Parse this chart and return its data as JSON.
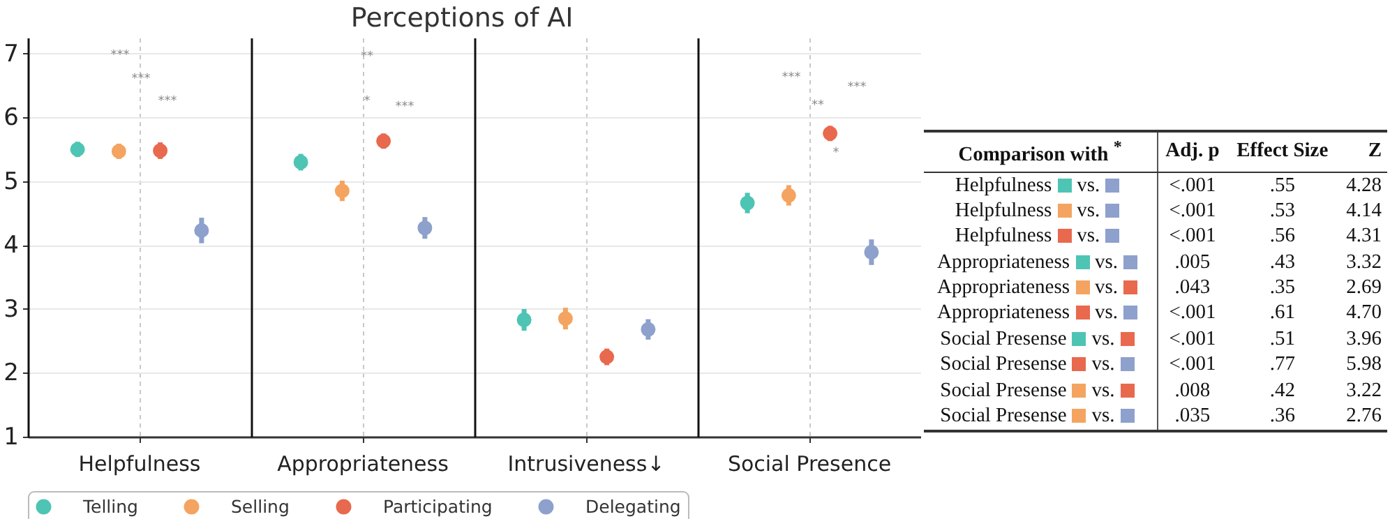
{
  "chart_data": [
    {
      "type": "scatter",
      "title": "Perceptions of AI",
      "categories": [
        "Helpfulness",
        "Appropriateness",
        "Intrusiveness↓",
        "Social Presence"
      ],
      "series": [
        {
          "name": "Telling",
          "color": "#4ec4b4",
          "values": [
            5.5,
            5.3,
            2.83,
            4.66
          ],
          "errors": [
            0.12,
            0.13,
            0.17,
            0.16
          ]
        },
        {
          "name": "Selling",
          "color": "#f4a460",
          "values": [
            5.47,
            4.85,
            2.85,
            4.78
          ],
          "errors": [
            0.12,
            0.16,
            0.17,
            0.16
          ]
        },
        {
          "name": "Participating",
          "color": "#e8694e",
          "values": [
            5.48,
            5.63,
            2.25,
            5.75
          ],
          "errors": [
            0.13,
            0.12,
            0.13,
            0.12
          ]
        },
        {
          "name": "Delegating",
          "color": "#8ea0cc",
          "values": [
            4.23,
            4.27,
            2.68,
            3.89
          ],
          "errors": [
            0.2,
            0.17,
            0.16,
            0.2
          ]
        }
      ],
      "ylim": [
        1,
        7.25
      ],
      "yticks": [
        1,
        2,
        3,
        4,
        5,
        6,
        7
      ],
      "grid": true,
      "legend": "bottom",
      "marker": "circle",
      "annotations": [
        "***",
        "***",
        "***",
        "**",
        "*",
        "***",
        "***",
        "***",
        "**",
        "*"
      ]
    },
    {
      "type": "other",
      "categories": [
        "Comparison with $^{*}$",
        "Adj. p",
        "Effect Size",
        "Z"
      ],
      "y_categories": [
        "Helpfulness",
        "Helpfulness",
        "Helpfulness",
        "Appropriateness",
        "Appropriateness",
        "Appropriateness",
        "Social Presense",
        "Social Presense",
        "Social Presense",
        "Social Presense"
      ],
      "colors": [
        [
          "#4ec4b4",
          "#8ea0cc"
        ],
        [
          "#f4a460",
          "#8ea0cc"
        ],
        [
          "#e8694e",
          "#8ea0cc"
        ],
        [
          "#4ec4b4",
          "#8ea0cc"
        ],
        [
          "#f4a460",
          "#e8694e"
        ],
        [
          "#e8694e",
          "#8ea0cc"
        ],
        [
          "#4ec4b4",
          "#e8694e"
        ],
        [
          "#e8694e",
          "#8ea0cc"
        ],
        [
          "#f4a460",
          "#e8694e"
        ],
        [
          "#f4a460",
          "#8ea0cc"
        ]
      ],
      "cell_labels": [
        [
          "vs.",
          "<.001",
          ".55",
          "4.28"
        ],
        [
          "vs.",
          "<.001",
          ".53",
          "4.14"
        ],
        [
          "vs.",
          "<.001",
          ".56",
          "4.31"
        ],
        [
          "vs.",
          ".005",
          ".43",
          "3.32"
        ],
        [
          "vs.",
          ".043",
          ".35",
          "2.69"
        ],
        [
          "vs.",
          "<.001",
          ".61",
          "4.70"
        ],
        [
          "vs.",
          "<.001",
          ".51",
          "3.96"
        ],
        [
          "vs.",
          "<.001",
          ".77",
          "5.98"
        ],
        [
          "vs.",
          ".008",
          ".42",
          "3.22"
        ],
        [
          "vs.",
          ".035",
          ".36",
          "2.76"
        ]
      ]
    }
  ]
}
